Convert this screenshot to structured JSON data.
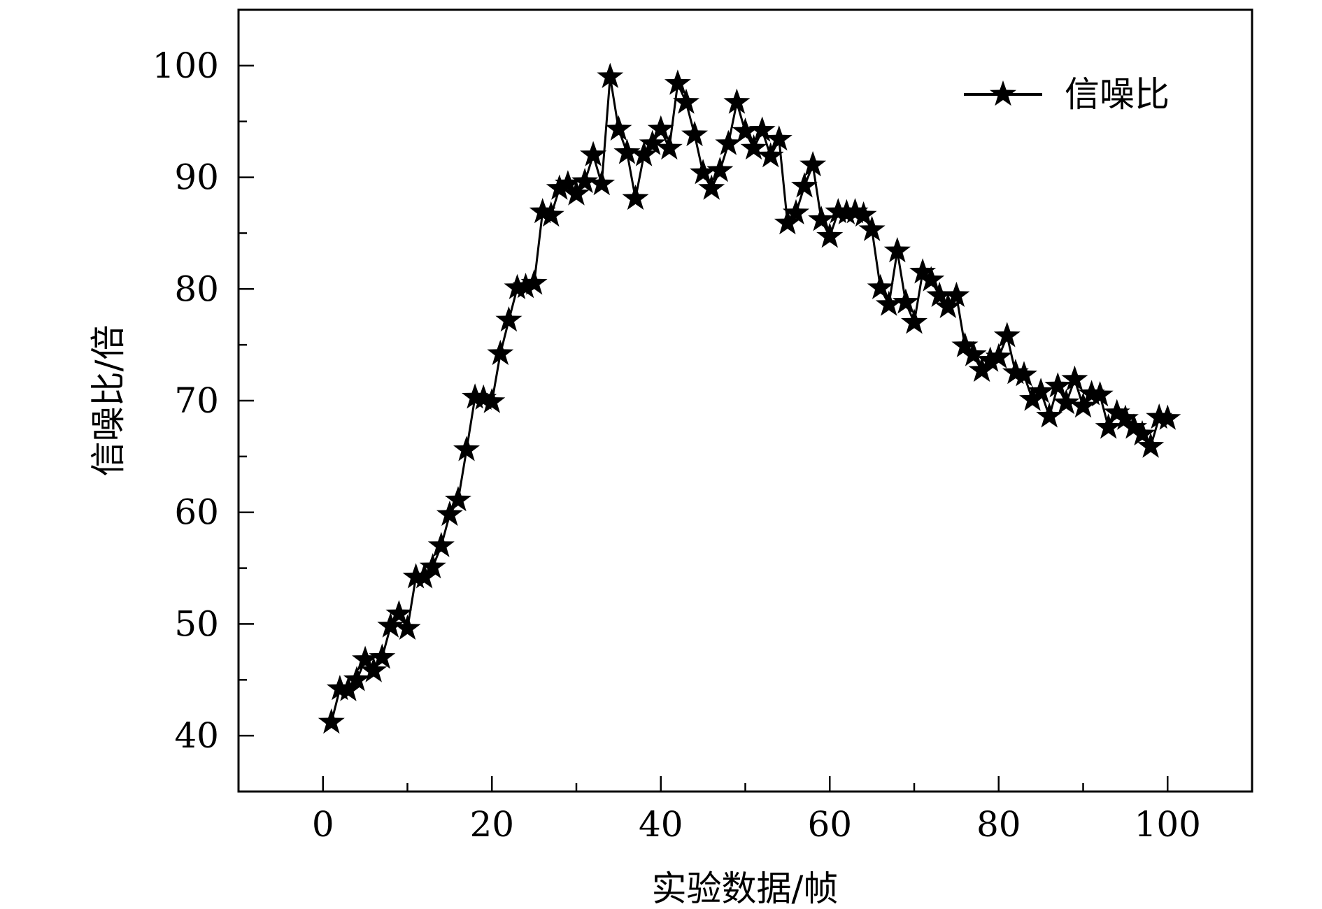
{
  "chart_data": {
    "type": "line",
    "title": "",
    "xlabel": "实验数据/帧",
    "ylabel": "信噪比/倍",
    "xlim": [
      -10,
      110
    ],
    "ylim": [
      35,
      105
    ],
    "xticks": [
      0,
      20,
      40,
      60,
      80,
      100
    ],
    "yticks": [
      40,
      50,
      60,
      70,
      80,
      90,
      100
    ],
    "grid": false,
    "legend": {
      "position": "top-right",
      "entries": [
        "信噪比"
      ]
    },
    "series": [
      {
        "name": "信噪比",
        "color": "#000000",
        "marker": "star",
        "x": [
          1,
          2,
          3,
          4,
          5,
          6,
          7,
          8,
          9,
          10,
          11,
          12,
          13,
          14,
          15,
          16,
          17,
          18,
          19,
          20,
          21,
          22,
          23,
          24,
          25,
          26,
          27,
          28,
          29,
          30,
          31,
          32,
          33,
          34,
          35,
          36,
          37,
          38,
          39,
          40,
          41,
          42,
          43,
          44,
          45,
          46,
          47,
          48,
          49,
          50,
          51,
          52,
          53,
          54,
          55,
          56,
          57,
          58,
          59,
          60,
          61,
          62,
          63,
          64,
          65,
          66,
          67,
          68,
          69,
          70,
          71,
          72,
          73,
          74,
          75,
          76,
          77,
          78,
          79,
          80,
          81,
          82,
          83,
          84,
          85,
          86,
          87,
          88,
          89,
          90,
          91,
          92,
          93,
          94,
          95,
          96,
          97,
          98,
          99,
          100
        ],
        "y": [
          41.2,
          44.2,
          44.1,
          45.0,
          46.8,
          45.8,
          47.0,
          49.8,
          50.9,
          49.6,
          54.2,
          54.2,
          55.1,
          57.0,
          59.8,
          61.1,
          65.6,
          70.3,
          70.2,
          69.9,
          74.2,
          77.2,
          80.1,
          80.2,
          80.5,
          86.9,
          86.6,
          89.0,
          89.4,
          88.5,
          89.6,
          92.0,
          89.4,
          99.0,
          94.3,
          92.2,
          88.1,
          92.0,
          93.0,
          94.3,
          92.6,
          98.4,
          96.7,
          93.8,
          90.4,
          89.0,
          90.6,
          93.0,
          96.7,
          94.1,
          92.6,
          94.2,
          91.9,
          93.4,
          85.9,
          86.8,
          89.2,
          91.1,
          86.2,
          84.7,
          86.9,
          86.8,
          86.9,
          86.6,
          85.3,
          80.1,
          78.6,
          83.4,
          78.8,
          77.0,
          81.5,
          80.8,
          79.4,
          78.4,
          79.4,
          74.9,
          74.1,
          72.7,
          73.6,
          73.9,
          75.8,
          72.5,
          72.3,
          70.1,
          70.8,
          68.6,
          71.3,
          69.8,
          71.9,
          69.5,
          70.6,
          70.5,
          67.6,
          68.9,
          68.4,
          67.6,
          67.0,
          65.9,
          68.5,
          68.4
        ]
      }
    ]
  }
}
